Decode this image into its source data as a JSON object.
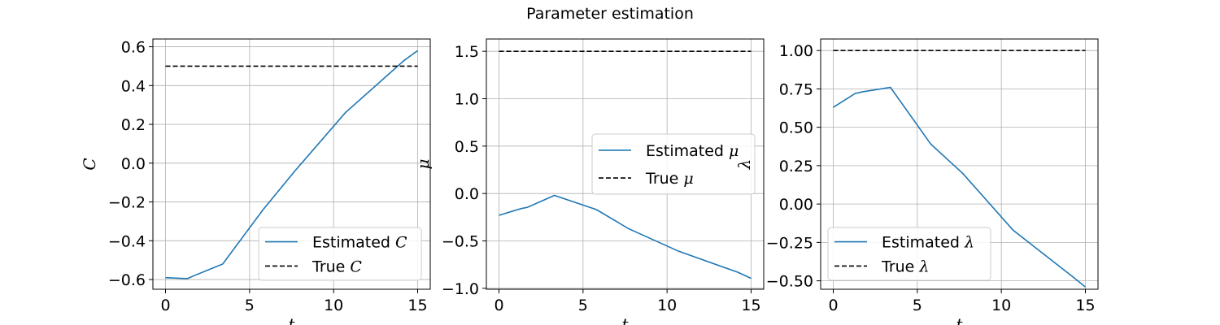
{
  "figure": {
    "title": "Parameter estimation"
  },
  "colors": {
    "estimated": "#1f77b4",
    "true": "#000000",
    "grid": "#b0b0b0"
  },
  "chart_data": [
    {
      "type": "line",
      "xlabel": "t",
      "ylabel": "C",
      "xlim": [
        -0.75,
        15.75
      ],
      "ylim": [
        -0.65,
        0.64
      ],
      "xticks": [
        "0",
        "5",
        "10",
        "15"
      ],
      "yticks": [
        "0.6",
        "0.4",
        "0.2",
        "0.0",
        "−0.2",
        "−0.4",
        "−0.6"
      ],
      "ytick_values": [
        0.6,
        0.4,
        0.2,
        0.0,
        -0.2,
        -0.4,
        -0.6
      ],
      "grid": true,
      "legend": {
        "placement": "lower-right",
        "estimated_label": "Estimated ",
        "true_label": "True ",
        "symbol": "C"
      },
      "series": [
        {
          "name": "Estimated C",
          "style": "solid",
          "x": [
            0,
            1.3,
            1.7,
            3.4,
            5.8,
            7.7,
            10.7,
            14.2,
            15
          ],
          "y": [
            -0.59,
            -0.595,
            -0.58,
            -0.52,
            -0.24,
            -0.04,
            0.26,
            0.53,
            0.58
          ]
        },
        {
          "name": "True C",
          "style": "dashed",
          "x": [
            0,
            15
          ],
          "y": [
            0.5,
            0.5
          ]
        }
      ]
    },
    {
      "type": "line",
      "xlabel": "t",
      "ylabel": "μ",
      "xlim": [
        -0.75,
        15.75
      ],
      "ylim": [
        -1.01,
        1.63
      ],
      "xticks": [
        "0",
        "5",
        "10",
        "15"
      ],
      "yticks": [
        "1.5",
        "1.0",
        "0.5",
        "0.0",
        "−0.5",
        "−1.0"
      ],
      "ytick_values": [
        1.5,
        1.0,
        0.5,
        0.0,
        -0.5,
        -1.0
      ],
      "grid": true,
      "legend": {
        "placement": "center-right",
        "estimated_label": "Estimated ",
        "true_label": "True ",
        "symbol": "μ"
      },
      "series": [
        {
          "name": "Estimated μ",
          "style": "solid",
          "x": [
            0,
            1.3,
            1.7,
            3.3,
            5.8,
            7.7,
            10.7,
            14.2,
            15
          ],
          "y": [
            -0.23,
            -0.16,
            -0.145,
            -0.02,
            -0.17,
            -0.37,
            -0.61,
            -0.83,
            -0.895
          ]
        },
        {
          "name": "True μ",
          "style": "dashed",
          "x": [
            0,
            15
          ],
          "y": [
            1.5,
            1.5
          ]
        }
      ]
    },
    {
      "type": "line",
      "xlabel": "t",
      "ylabel": "λ",
      "xlim": [
        -0.75,
        15.75
      ],
      "ylim": [
        -0.555,
        1.075
      ],
      "xticks": [
        "0",
        "5",
        "10",
        "15"
      ],
      "yticks": [
        "1.00",
        "0.75",
        "0.50",
        "0.25",
        "0.00",
        "−0.25",
        "−0.50"
      ],
      "ytick_values": [
        1.0,
        0.75,
        0.5,
        0.25,
        0.0,
        -0.25,
        -0.5
      ],
      "grid": true,
      "legend": {
        "placement": "lower-left",
        "estimated_label": "Estimated ",
        "true_label": "True ",
        "symbol": "λ"
      },
      "series": [
        {
          "name": "Estimated λ",
          "style": "solid",
          "x": [
            0,
            1.3,
            1.7,
            3.4,
            5.8,
            7.7,
            10.7,
            14.2,
            15
          ],
          "y": [
            0.63,
            0.72,
            0.73,
            0.76,
            0.39,
            0.2,
            -0.17,
            -0.47,
            -0.54
          ]
        },
        {
          "name": "True λ",
          "style": "dashed",
          "x": [
            0,
            15
          ],
          "y": [
            1.0,
            1.0
          ]
        }
      ]
    }
  ]
}
